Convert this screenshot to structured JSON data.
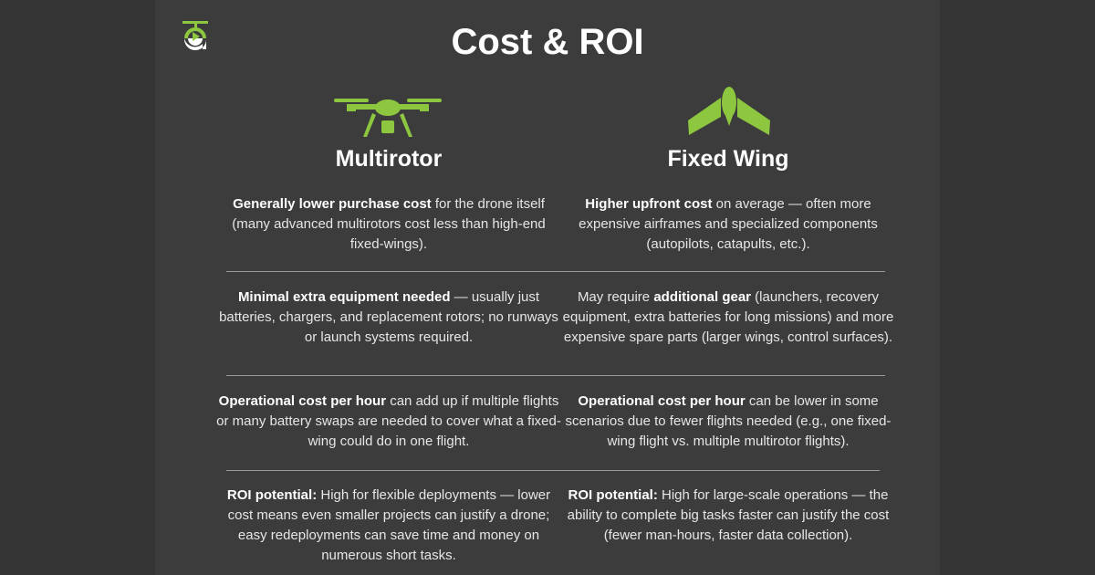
{
  "title": "Cost & ROI",
  "colors": {
    "accent": "#8dc63f",
    "background": "#3c3c3c"
  },
  "logo": {
    "icon": "drone-play-logo"
  },
  "columns": [
    {
      "heading": "Multirotor",
      "icon": "multirotor-drone-icon",
      "rows": [
        {
          "bold": "Generally lower purchase cost",
          "text": " for the drone itself (many advanced multirotors cost less than high-end fixed-wings)."
        },
        {
          "bold": "Minimal extra equipment needed",
          "text": " — usually just batteries, chargers, and replacement rotors; no runways or launch systems required."
        },
        {
          "bold": "Operational cost per hour",
          "text": " can add up if multiple flights or many battery swaps are needed to cover what a fixed-wing could do in one flight."
        },
        {
          "bold": "ROI potential:",
          "text": " High for flexible deployments — lower cost means even smaller projects can justify a drone; easy redeployments can save time and money on numerous short tasks."
        }
      ]
    },
    {
      "heading": "Fixed Wing",
      "icon": "fixed-wing-drone-icon",
      "rows": [
        {
          "bold": "Higher upfront cost",
          "text": " on average —  often more expensive airframes and specialized components (autopilots, catapults, etc.)."
        },
        {
          "pre": "May require ",
          "bold": "additional gear",
          "text": " (launchers, recovery equipment, extra batteries for long missions) and more expensive spare parts (larger wings, control surfaces)."
        },
        {
          "bold": "Operational cost per hour",
          "text": " can be lower in some scenarios due to fewer flights needed (e.g., one fixed-wing flight vs. multiple multirotor flights)."
        },
        {
          "bold": "ROI potential:",
          "text": " High for large-scale operations — the ability to complete big tasks faster can justify the cost (fewer man-hours, faster data collection)."
        }
      ]
    }
  ]
}
